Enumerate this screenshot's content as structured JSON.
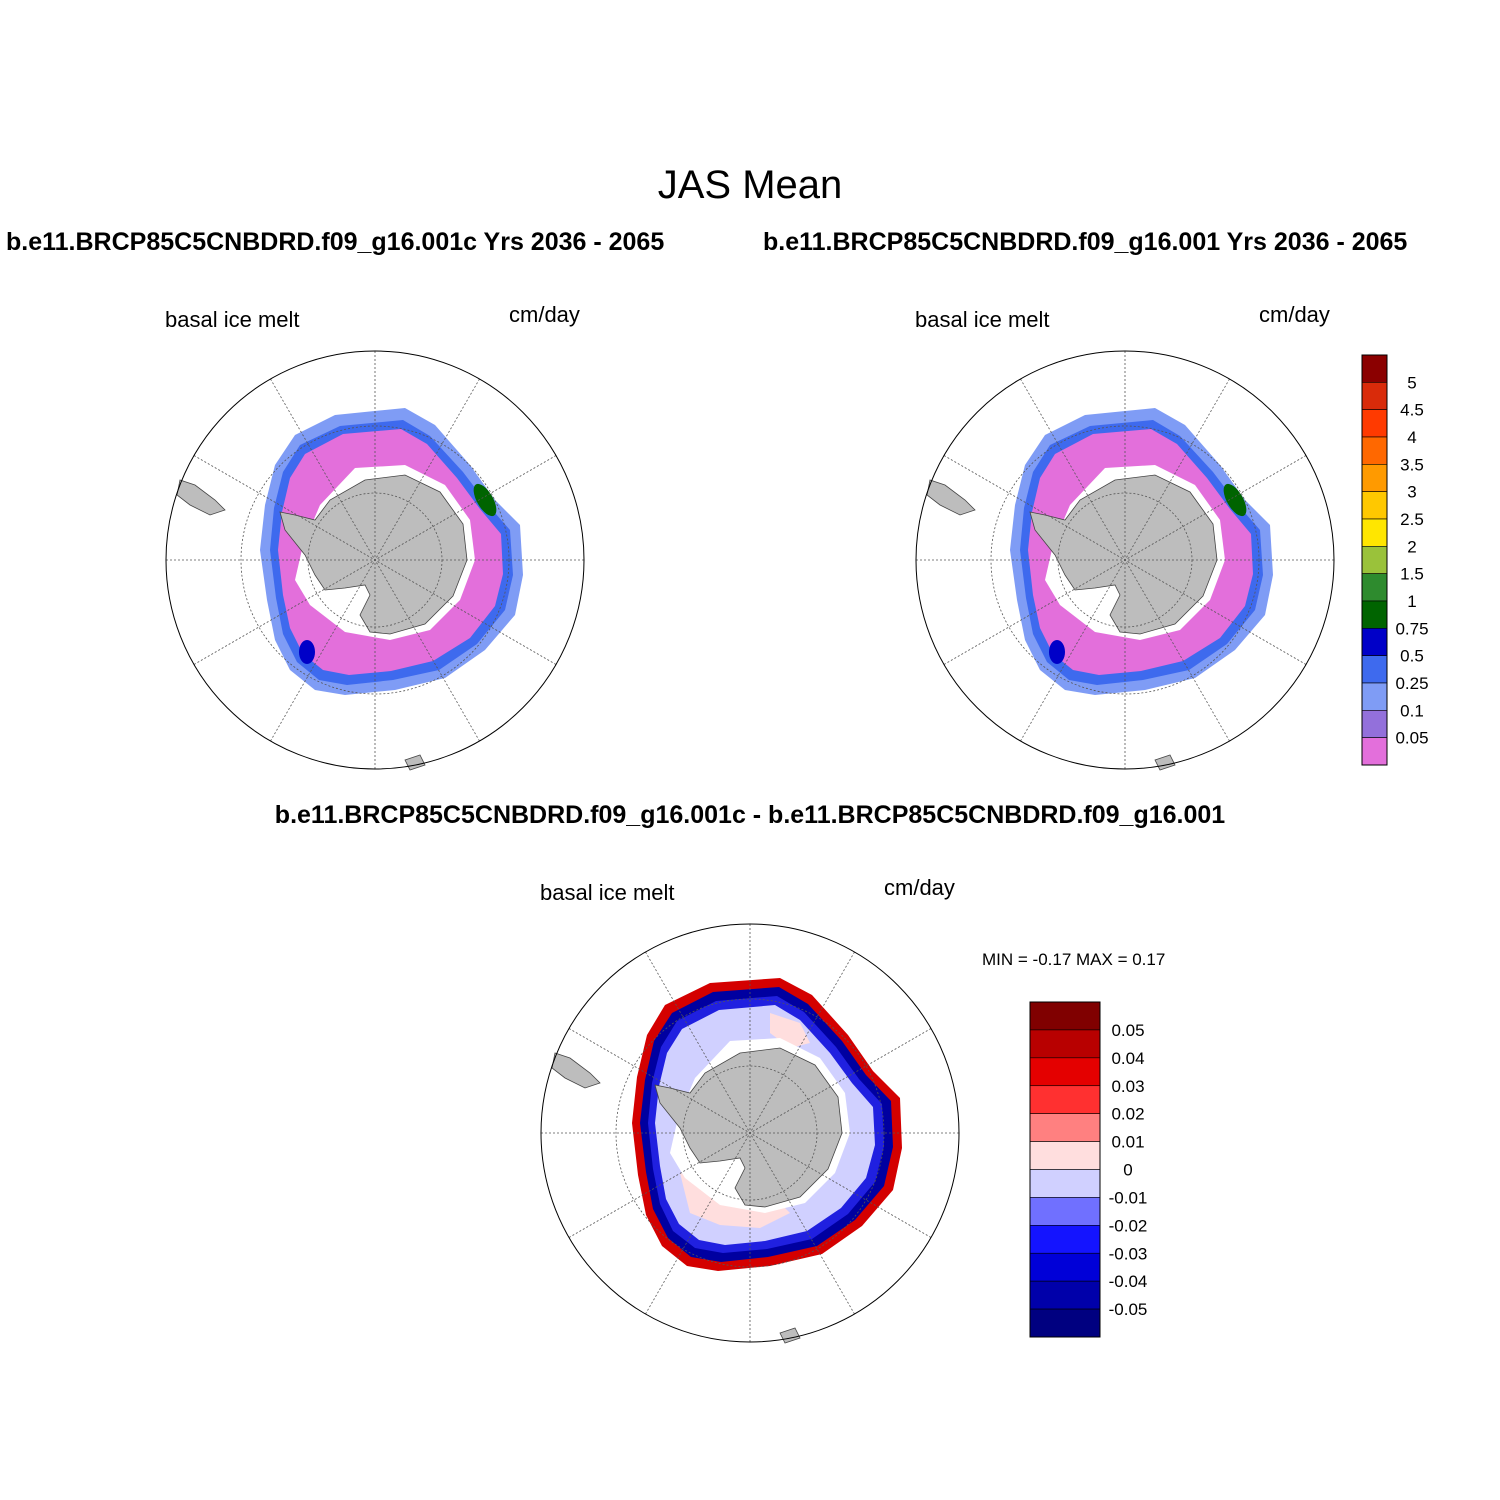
{
  "title": "JAS Mean",
  "panels": {
    "case1": {
      "title": "b.e11.BRCP85C5CNBDRD.f09_g16.001c  Yrs 2036 - 2065",
      "variable": "basal ice melt",
      "units": "cm/day"
    },
    "case2": {
      "title": "b.e11.BRCP85C5CNBDRD.f09_g16.001  Yrs 2036 - 2065",
      "variable": "basal ice melt",
      "units": "cm/day"
    },
    "diff": {
      "title": "b.e11.BRCP85C5CNBDRD.f09_g16.001c - b.e11.BRCP85C5CNBDRD.f09_g16.001",
      "variable": "basal ice melt",
      "units": "cm/day",
      "min_max": "MIN =  -0.17 MAX =   0.17"
    }
  },
  "colorbar_main": {
    "labels": [
      "5",
      "4.5",
      "4",
      "3.5",
      "3",
      "2.5",
      "2",
      "1.5",
      "1",
      "0.75",
      "0.5",
      "0.25",
      "0.1",
      "0.05"
    ],
    "colors": [
      "#8b0000",
      "#d92b0a",
      "#ff3a00",
      "#ff6800",
      "#ff9a00",
      "#ffc800",
      "#ffe600",
      "#9ac23a",
      "#2e8b2e",
      "#006400",
      "#0000c8",
      "#3e6aee",
      "#7f9cf5",
      "#9370db",
      "#e36fdb"
    ]
  },
  "colorbar_diff": {
    "labels": [
      "0.05",
      "0.04",
      "0.03",
      "0.02",
      "0.01",
      "0",
      "-0.01",
      "-0.02",
      "-0.03",
      "-0.04",
      "-0.05"
    ],
    "colors": [
      "#800000",
      "#b80000",
      "#e40000",
      "#ff3030",
      "#ff8080",
      "#ffdede",
      "#d0d0ff",
      "#7070ff",
      "#1414ff",
      "#0000d8",
      "#0000aa",
      "#000080"
    ]
  },
  "map_colors": {
    "land": "#bdbdbd",
    "ice_low": "#e36fdb",
    "ice_mid": "#9370db",
    "ice_blue": "#7f9cf5",
    "ice_dark": "#3e6aee",
    "diff_light_blue": "#d0d0ff",
    "diff_blue": "#2020e0",
    "diff_dark_blue": "#0000a0",
    "diff_red": "#d40000",
    "diff_pink": "#ffdede"
  }
}
